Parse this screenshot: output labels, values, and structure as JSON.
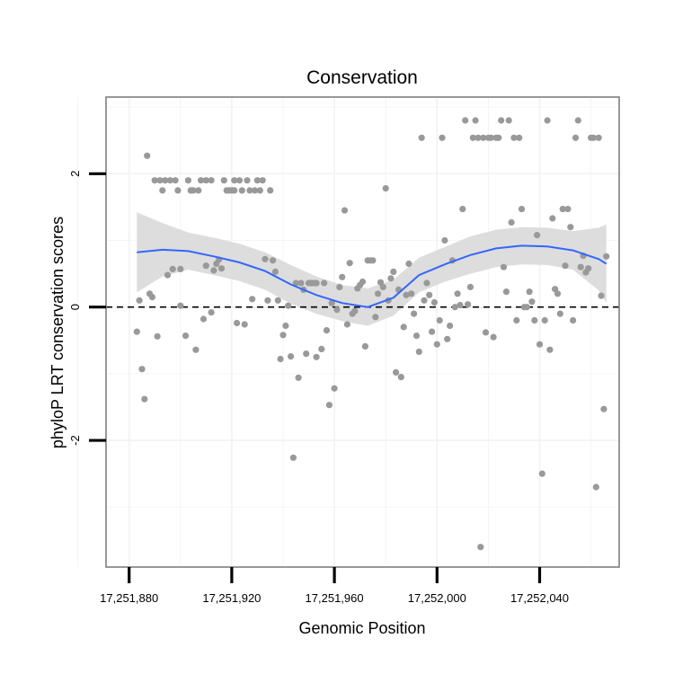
{
  "chart_data": {
    "type": "scatter",
    "title": "Conservation",
    "xlabel": "Genomic Position",
    "ylabel": "phyloP LRT conservation scores",
    "xlim": [
      17251871,
      17252071
    ],
    "ylim": [
      -3.9,
      3.15
    ],
    "x_ticks": [
      {
        "value": 17251880,
        "label": "17,251,880"
      },
      {
        "value": 17251920,
        "label": "17,251,920"
      },
      {
        "value": 17251960,
        "label": "17,251,960"
      },
      {
        "value": 17252000,
        "label": "17,252,000"
      },
      {
        "value": 17252040,
        "label": "17,252,040"
      }
    ],
    "y_ticks": [
      {
        "value": 2,
        "label": "2"
      },
      {
        "value": 0,
        "label": "0"
      },
      {
        "value": -2,
        "label": "-2"
      }
    ],
    "reference_line": {
      "y": 0,
      "style": "dashed"
    },
    "colors": {
      "points": "#999999",
      "smooth": "#3366ff",
      "ribbon": "#d9d9d9",
      "grid": "#f2f2f2",
      "border": "#7f7f7f"
    },
    "points": [
      [
        17251883,
        -0.37
      ],
      [
        17251884,
        0.1
      ],
      [
        17251885,
        -0.93
      ],
      [
        17251886,
        -1.38
      ],
      [
        17251887,
        2.27
      ],
      [
        17251888,
        0.2
      ],
      [
        17251889,
        0.15
      ],
      [
        17251890,
        1.9
      ],
      [
        17251891,
        -0.44
      ],
      [
        17251892,
        1.9
      ],
      [
        17251893,
        1.75
      ],
      [
        17251894,
        1.9
      ],
      [
        17251895,
        0.48
      ],
      [
        17251896,
        1.9
      ],
      [
        17251897,
        0.57
      ],
      [
        17251898,
        1.9
      ],
      [
        17251899,
        1.75
      ],
      [
        17251900,
        0.57
      ],
      [
        17251900,
        0.02
      ],
      [
        17251902,
        -0.43
      ],
      [
        17251903,
        1.9
      ],
      [
        17251904,
        1.75
      ],
      [
        17251905,
        1.75
      ],
      [
        17251906,
        -0.64
      ],
      [
        17251907,
        1.75
      ],
      [
        17251908,
        1.9
      ],
      [
        17251909,
        -0.18
      ],
      [
        17251910,
        1.9
      ],
      [
        17251910,
        0.62
      ],
      [
        17251912,
        1.9
      ],
      [
        17251912,
        -0.08
      ],
      [
        17251913,
        0.55
      ],
      [
        17251914,
        0.65
      ],
      [
        17251915,
        0.71
      ],
      [
        17251916,
        0.58
      ],
      [
        17251917,
        1.9
      ],
      [
        17251918,
        1.75
      ],
      [
        17251919,
        1.75
      ],
      [
        17251920,
        1.75
      ],
      [
        17251921,
        1.9
      ],
      [
        17251921,
        1.75
      ],
      [
        17251922,
        -0.24
      ],
      [
        17251923,
        1.9
      ],
      [
        17251924,
        1.75
      ],
      [
        17251925,
        -0.26
      ],
      [
        17251926,
        1.9
      ],
      [
        17251927,
        1.75
      ],
      [
        17251928,
        0.12
      ],
      [
        17251929,
        1.75
      ],
      [
        17251930,
        1.9
      ],
      [
        17251931,
        1.75
      ],
      [
        17251932,
        1.9
      ],
      [
        17251933,
        0.72
      ],
      [
        17251934,
        0.1
      ],
      [
        17251935,
        1.75
      ],
      [
        17251936,
        0.7
      ],
      [
        17251937,
        0.53
      ],
      [
        17251938,
        0.1
      ],
      [
        17251939,
        -0.78
      ],
      [
        17251940,
        -0.42
      ],
      [
        17251941,
        -0.28
      ],
      [
        17251942,
        0.02
      ],
      [
        17251943,
        -0.74
      ],
      [
        17251944,
        -2.26
      ],
      [
        17251945,
        0.36
      ],
      [
        17251946,
        -1.06
      ],
      [
        17251947,
        0.36
      ],
      [
        17251948,
        0.26
      ],
      [
        17251949,
        -0.7
      ],
      [
        17251950,
        0.36
      ],
      [
        17251951,
        0.36
      ],
      [
        17251952,
        0.36
      ],
      [
        17251953,
        -0.75
      ],
      [
        17251953,
        0.36
      ],
      [
        17251955,
        -0.63
      ],
      [
        17251956,
        0.36
      ],
      [
        17251957,
        -0.35
      ],
      [
        17251958,
        -1.47
      ],
      [
        17251959,
        0.06
      ],
      [
        17251960,
        -1.22
      ],
      [
        17251961,
        -0.04
      ],
      [
        17251962,
        0.3
      ],
      [
        17251963,
        0.45
      ],
      [
        17251964,
        1.45
      ],
      [
        17251965,
        -0.26
      ],
      [
        17251966,
        0.66
      ],
      [
        17251967,
        -0.1
      ],
      [
        17251968,
        -0.06
      ],
      [
        17251969,
        0.28
      ],
      [
        17251970,
        0.33
      ],
      [
        17251971,
        0.38
      ],
      [
        17251972,
        -0.59
      ],
      [
        17251973,
        0.7
      ],
      [
        17251974,
        0.7
      ],
      [
        17251975,
        0.7
      ],
      [
        17251976,
        -0.15
      ],
      [
        17251977,
        0.2
      ],
      [
        17251978,
        0.37
      ],
      [
        17251979,
        0.3
      ],
      [
        17251980,
        1.78
      ],
      [
        17251981,
        0.1
      ],
      [
        17251982,
        0.43
      ],
      [
        17251983,
        0.53
      ],
      [
        17251984,
        -0.98
      ],
      [
        17251985,
        0.26
      ],
      [
        17251986,
        -1.05
      ],
      [
        17251987,
        -0.3
      ],
      [
        17251988,
        0.18
      ],
      [
        17251989,
        0.65
      ],
      [
        17251990,
        0.2
      ],
      [
        17251991,
        -0.1
      ],
      [
        17251992,
        -0.43
      ],
      [
        17251993,
        -0.67
      ],
      [
        17251994,
        2.54
      ],
      [
        17251995,
        0.1
      ],
      [
        17251996,
        0.36
      ],
      [
        17251997,
        0.18
      ],
      [
        17251998,
        -0.37
      ],
      [
        17251999,
        0.07
      ],
      [
        17252000,
        -0.56
      ],
      [
        17252001,
        -0.2
      ],
      [
        17252002,
        2.54
      ],
      [
        17252003,
        1.0
      ],
      [
        17252004,
        -0.48
      ],
      [
        17252005,
        -0.28
      ],
      [
        17252006,
        0.7
      ],
      [
        17252007,
        0.0
      ],
      [
        17252008,
        0.2
      ],
      [
        17252009,
        0.03
      ],
      [
        17252010,
        1.47
      ],
      [
        17252011,
        2.8
      ],
      [
        17252012,
        0.04
      ],
      [
        17252013,
        0.3
      ],
      [
        17252014,
        2.54
      ],
      [
        17252015,
        2.8
      ],
      [
        17252016,
        2.54
      ],
      [
        17252017,
        -3.6
      ],
      [
        17252018,
        2.54
      ],
      [
        17252019,
        -0.38
      ],
      [
        17252020,
        2.54
      ],
      [
        17252021,
        2.54
      ],
      [
        17252022,
        -0.45
      ],
      [
        17252023,
        2.54
      ],
      [
        17252024,
        2.54
      ],
      [
        17252025,
        2.8
      ],
      [
        17252026,
        0.6
      ],
      [
        17252027,
        0.23
      ],
      [
        17252028,
        2.8
      ],
      [
        17252029,
        1.27
      ],
      [
        17252030,
        2.54
      ],
      [
        17252031,
        -0.2
      ],
      [
        17252032,
        2.54
      ],
      [
        17252033,
        1.47
      ],
      [
        17252034,
        0.0
      ],
      [
        17252035,
        0.0
      ],
      [
        17252036,
        0.23
      ],
      [
        17252037,
        0.08
      ],
      [
        17252038,
        -0.2
      ],
      [
        17252039,
        1.08
      ],
      [
        17252040,
        -0.56
      ],
      [
        17252041,
        -2.5
      ],
      [
        17252042,
        -0.2
      ],
      [
        17252043,
        2.8
      ],
      [
        17252044,
        -0.64
      ],
      [
        17252045,
        1.33
      ],
      [
        17252046,
        0.27
      ],
      [
        17252047,
        0.2
      ],
      [
        17252048,
        -0.1
      ],
      [
        17252049,
        1.47
      ],
      [
        17252050,
        0.62
      ],
      [
        17252051,
        1.47
      ],
      [
        17252052,
        1.2
      ],
      [
        17252053,
        -0.2
      ],
      [
        17252054,
        2.54
      ],
      [
        17252055,
        2.8
      ],
      [
        17252056,
        0.6
      ],
      [
        17252057,
        0.77
      ],
      [
        17252058,
        0.52
      ],
      [
        17252059,
        0.58
      ],
      [
        17252060,
        2.54
      ],
      [
        17252061,
        2.54
      ],
      [
        17252062,
        -2.7
      ],
      [
        17252063,
        2.54
      ],
      [
        17252064,
        0.17
      ],
      [
        17252065,
        -1.53
      ],
      [
        17252066,
        0.76
      ]
    ],
    "smooth": {
      "x": [
        17251883,
        17251893,
        17251903,
        17251913,
        17251923,
        17251933,
        17251943,
        17251953,
        17251963,
        17251973,
        17251983,
        17251993,
        17252003,
        17252013,
        17252023,
        17252033,
        17252043,
        17252053,
        17252063,
        17252066
      ],
      "y": [
        0.82,
        0.86,
        0.84,
        0.76,
        0.67,
        0.54,
        0.34,
        0.18,
        0.06,
        0.0,
        0.14,
        0.48,
        0.64,
        0.78,
        0.88,
        0.92,
        0.91,
        0.85,
        0.72,
        0.65
      ],
      "lower": [
        0.22,
        0.46,
        0.56,
        0.48,
        0.39,
        0.26,
        0.05,
        -0.1,
        -0.21,
        -0.28,
        -0.13,
        0.22,
        0.38,
        0.5,
        0.6,
        0.64,
        0.63,
        0.56,
        0.25,
        0.06
      ],
      "upper": [
        1.42,
        1.26,
        1.12,
        1.04,
        0.95,
        0.82,
        0.63,
        0.46,
        0.33,
        0.28,
        0.41,
        0.74,
        0.9,
        1.06,
        1.16,
        1.2,
        1.19,
        1.14,
        1.19,
        1.24
      ]
    }
  }
}
